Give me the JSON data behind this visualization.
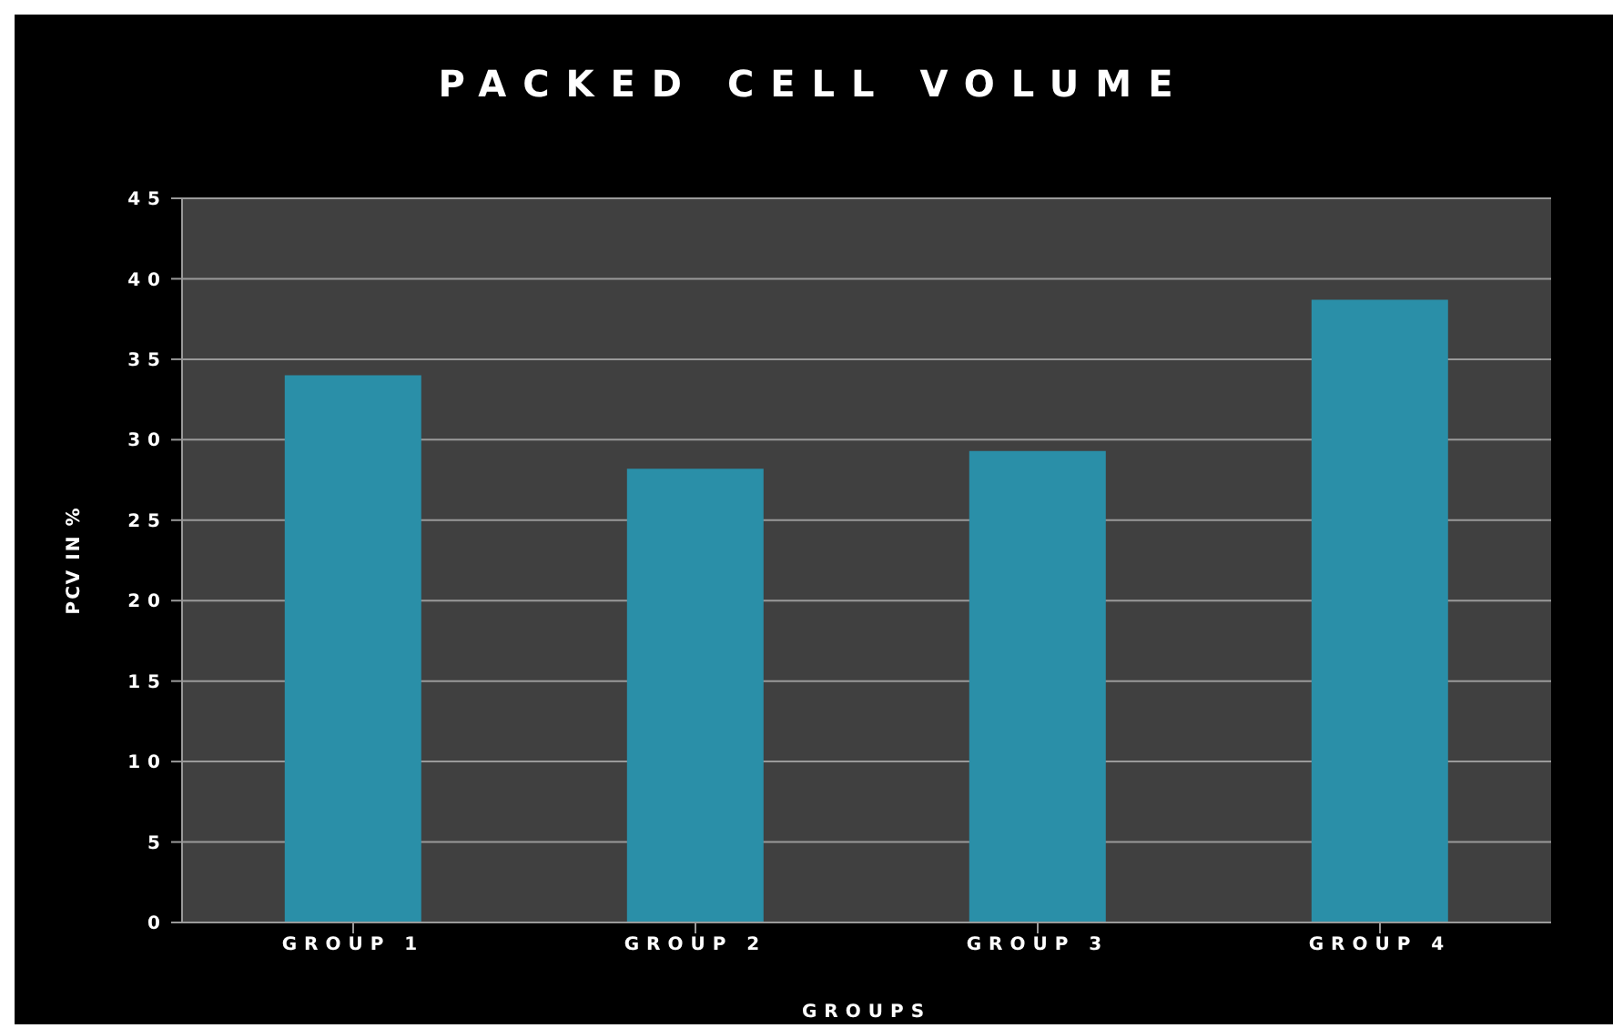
{
  "chart_data": {
    "type": "bar",
    "title": "PACKED CELL VOLUME",
    "xlabel": "GROUPS",
    "ylabel": "PCV IN %",
    "categories": [
      "GROUP 1",
      "GROUP 2",
      "GROUP 3",
      "GROUP 4"
    ],
    "values": [
      34.0,
      28.2,
      29.3,
      38.7
    ],
    "color": "#2a8fa8",
    "ylim": [
      0,
      45
    ],
    "yticks": [
      0,
      5,
      10,
      15,
      20,
      25,
      30,
      35,
      40,
      45
    ],
    "grid": "y"
  }
}
